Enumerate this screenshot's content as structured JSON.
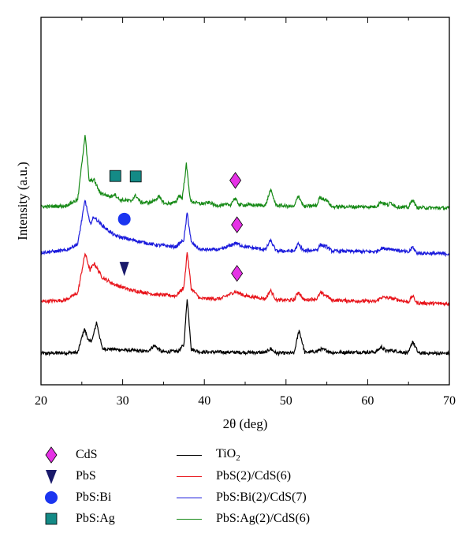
{
  "chart_data": {
    "type": "line",
    "title": "",
    "xlabel": "2θ (deg)",
    "ylabel": "Intensity (a.u.)",
    "xlim": [
      20,
      70
    ],
    "xticks": [
      "20",
      "30",
      "40",
      "50",
      "60",
      "70"
    ],
    "yticks": [],
    "grid": false,
    "legend_position": "bottom",
    "series": [
      {
        "name": "TiO2",
        "name_main": "TiO",
        "name_sub": "2",
        "color": "#000000",
        "x": [
          20,
          24.5,
          25.3,
          25.9,
          26.3,
          26.8,
          27.5,
          33,
          33.9,
          34.8,
          36.8,
          37.5,
          37.9,
          38.4,
          39.5,
          47.5,
          48.1,
          48.8,
          51.0,
          51.6,
          52.3,
          53.8,
          54.2,
          55.0,
          55.6,
          61.0,
          61.7,
          62.3,
          62.8,
          65.0,
          65.5,
          66.2,
          70
        ],
        "y": [
          0.05,
          0.08,
          0.92,
          0.45,
          0.55,
          1.15,
          0.22,
          0.12,
          0.33,
          0.1,
          0.13,
          0.35,
          2.0,
          0.2,
          0.1,
          0.08,
          0.22,
          0.06,
          0.06,
          0.88,
          0.08,
          0.12,
          0.2,
          0.15,
          0.08,
          0.1,
          0.28,
          0.12,
          0.16,
          0.06,
          0.48,
          0.06,
          0.05
        ]
      },
      {
        "name": "PbS(2)/CdS(6)",
        "color": "#e8141b",
        "x": [
          20,
          23.0,
          24.5,
          25.4,
          26.0,
          26.5,
          27.5,
          29,
          31,
          34,
          36.5,
          37.5,
          37.9,
          38.4,
          39.5,
          42,
          43.8,
          45,
          47.5,
          48.1,
          48.8,
          51.0,
          51.5,
          52.2,
          53.8,
          54.2,
          55.0,
          55.6,
          61.0,
          61.7,
          62.8,
          65.0,
          65.5,
          66.0,
          70
        ],
        "y": [
          0.1,
          0.15,
          0.4,
          1.8,
          1.2,
          1.45,
          0.95,
          0.7,
          0.5,
          0.35,
          0.3,
          0.6,
          1.85,
          0.55,
          0.2,
          0.2,
          0.45,
          0.3,
          0.2,
          0.5,
          0.15,
          0.15,
          0.45,
          0.15,
          0.2,
          0.4,
          0.3,
          0.15,
          0.1,
          0.25,
          0.22,
          0.08,
          0.3,
          0.05,
          0.02
        ]
      },
      {
        "name": "PbS:Bi(2)/CdS(7)",
        "color": "#1b1bdc",
        "x": [
          20,
          23.0,
          24.5,
          25.4,
          26.0,
          26.5,
          27.5,
          29,
          31,
          34,
          36.5,
          37.5,
          37.9,
          38.4,
          39.5,
          42,
          43.8,
          45,
          47.5,
          48.1,
          48.8,
          51.0,
          51.5,
          52.2,
          53.8,
          54.2,
          55.0,
          55.6,
          61.0,
          61.7,
          62.8,
          65.0,
          65.5,
          66.0,
          70
        ],
        "y": [
          0.05,
          0.12,
          0.35,
          1.9,
          1.05,
          1.3,
          1.0,
          0.65,
          0.5,
          0.32,
          0.25,
          0.5,
          1.45,
          0.4,
          0.15,
          0.15,
          0.38,
          0.25,
          0.15,
          0.48,
          0.1,
          0.1,
          0.35,
          0.1,
          0.15,
          0.32,
          0.25,
          0.1,
          0.08,
          0.2,
          0.18,
          0.05,
          0.25,
          0.03,
          0.0
        ]
      },
      {
        "name": "PbS:Ag(2)/CdS(6)",
        "color": "#178a17",
        "x": [
          20,
          23.0,
          24.5,
          25.4,
          25.9,
          26.5,
          27.2,
          28.5,
          29.0,
          29.6,
          31.0,
          31.6,
          32.2,
          33.5,
          34.4,
          35.2,
          36.5,
          36.9,
          37.3,
          37.8,
          38.3,
          39.5,
          40.7,
          41.3,
          43.2,
          43.7,
          44.3,
          47.5,
          48.1,
          48.8,
          51.0,
          51.5,
          52.2,
          53.8,
          54.1,
          55.0,
          55.6,
          61.0,
          61.6,
          62.5,
          62.8,
          63.5,
          65.0,
          65.5,
          66.0,
          70
        ],
        "y": [
          0.05,
          0.08,
          0.3,
          2.6,
          0.95,
          1.0,
          0.55,
          0.4,
          0.5,
          0.3,
          0.25,
          0.45,
          0.2,
          0.2,
          0.4,
          0.15,
          0.2,
          0.45,
          0.35,
          1.55,
          0.25,
          0.15,
          0.2,
          0.1,
          0.12,
          0.35,
          0.12,
          0.1,
          0.65,
          0.1,
          0.05,
          0.45,
          0.05,
          0.1,
          0.38,
          0.28,
          0.05,
          0.05,
          0.22,
          0.1,
          0.2,
          0.05,
          0.02,
          0.32,
          0.02,
          0.0
        ]
      }
    ],
    "markers": [
      {
        "phase": "CdS",
        "x": 43.8,
        "near_series": 3
      },
      {
        "phase": "CdS",
        "x": 44.0,
        "near_series": 2
      },
      {
        "phase": "CdS",
        "x": 44.0,
        "near_series": 1
      },
      {
        "phase": "PbS",
        "x": 30.2,
        "near_series": 1
      },
      {
        "phase": "PbS:Bi",
        "x": 30.2,
        "near_series": 2
      },
      {
        "phase": "PbS:Ag",
        "x": 29.1,
        "near_series": 3
      },
      {
        "phase": "PbS:Ag",
        "x": 31.6,
        "near_series": 3
      }
    ],
    "marker_legend": [
      {
        "name": "CdS",
        "shape": "diamond",
        "color": "#e533e5"
      },
      {
        "name": "PbS",
        "shape": "triangle-down",
        "color": "#1a1a6b"
      },
      {
        "name": "PbS:Bi",
        "shape": "circle",
        "color": "#1b35f0"
      },
      {
        "name": "PbS:Ag",
        "shape": "square",
        "color": "#148a86"
      }
    ]
  }
}
